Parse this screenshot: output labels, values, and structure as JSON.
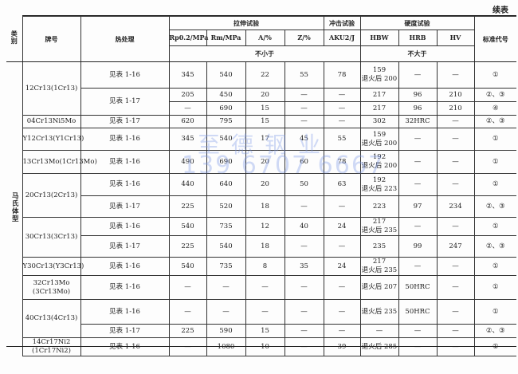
{
  "continued_label": "续表",
  "header": {
    "category": "类别",
    "grade": "牌号",
    "heat_treatment": "热处理",
    "tensile": "拉伸试验",
    "impact": "冲击试验",
    "hardness": "硬度试验",
    "standard": "标准代号",
    "cols": [
      "Rp0.2/MPa",
      "Rm/MPa",
      "A/%",
      "Z/%",
      "AKU2/J",
      "HBW",
      "HRB",
      "HV"
    ],
    "not_less": "不小于",
    "not_more": "不大于"
  },
  "category_value": "马氏体型",
  "groups": [
    {
      "grade": "12Cr13(1Cr13)",
      "rows": [
        [
          "见表 1-16",
          "345",
          "540",
          "22",
          "55",
          "78",
          "159\n退火后 200",
          "—",
          "—",
          "①"
        ],
        [
          "见表 1-17",
          "205",
          "450",
          "20",
          "—",
          "—",
          "217",
          "96",
          "210",
          "②、③"
        ],
        [
          "",
          "—",
          "690",
          "15",
          "—",
          "—",
          "217",
          "96",
          "210",
          "④"
        ]
      ]
    },
    {
      "grade": "04Cr13Ni5Mo",
      "rows": [
        [
          "见表 1-17",
          "620",
          "795",
          "15",
          "—",
          "—",
          "302",
          "32HRC",
          "—",
          "②、③"
        ]
      ]
    },
    {
      "grade": "Y12Cr13(Y1Cr13)",
      "rows": [
        [
          "见表 1-16",
          "345",
          "540",
          "17",
          "45",
          "55",
          "159\n退火后 200",
          "—",
          "—",
          "①"
        ]
      ]
    },
    {
      "grade": "13Cr13Mo(1Cr13Mo)",
      "rows": [
        [
          "见表 1-16",
          "490",
          "690",
          "20",
          "60",
          "78",
          "192\n退火后 200",
          "—",
          "—",
          "①"
        ]
      ]
    },
    {
      "grade": "20Cr13(2Cr13)",
      "rows": [
        [
          "见表 1-16",
          "440",
          "640",
          "20",
          "50",
          "63",
          "192\n退火后 223",
          "—",
          "—",
          "①"
        ],
        [
          "见表 1-17",
          "225",
          "520",
          "18",
          "—",
          "—",
          "223",
          "97",
          "234",
          "②、③"
        ]
      ]
    },
    {
      "grade": "30Cr13(3Cr13)",
      "rows": [
        [
          "见表 1-16",
          "540",
          "735",
          "12",
          "40",
          "24",
          "217\n退火后 235",
          "—",
          "—",
          "①"
        ],
        [
          "见表 1-17",
          "225",
          "540",
          "18",
          "—",
          "—",
          "235",
          "99",
          "247",
          "②、③"
        ]
      ]
    },
    {
      "grade": "Y30Cr13(Y3Cr13)",
      "rows": [
        [
          "见表 1-16",
          "540",
          "735",
          "8",
          "35",
          "24",
          "217\n退火后 235",
          "—",
          "—",
          "①"
        ]
      ]
    },
    {
      "grade": "32Cr13Mo\n(3Cr13Mo)",
      "rows": [
        [
          "见表 1-16",
          "—",
          "—",
          "—",
          "—",
          "—",
          "退火后 207",
          "50HRC",
          "—",
          "①"
        ]
      ]
    },
    {
      "grade": "40Cr13(4Cr13)",
      "rows": [
        [
          "见表 1-16",
          "—",
          "—",
          "—",
          "—",
          "—",
          "退火后 235",
          "50HRC",
          "—",
          "①"
        ],
        [
          "见表 1-17",
          "225",
          "590",
          "15",
          "—",
          "—",
          "—",
          "—",
          "—",
          "②、③"
        ]
      ]
    },
    {
      "grade": "14Cr17Ni2\n(1Cr17Ni2)",
      "rows": [
        [
          "见表 1-16",
          "—",
          "1080",
          "10",
          "—",
          "39",
          "退火后 285",
          "—",
          "—",
          "①"
        ]
      ]
    }
  ],
  "watermark": {
    "name": "至德钢业",
    "phone": "139 6707 6667"
  }
}
